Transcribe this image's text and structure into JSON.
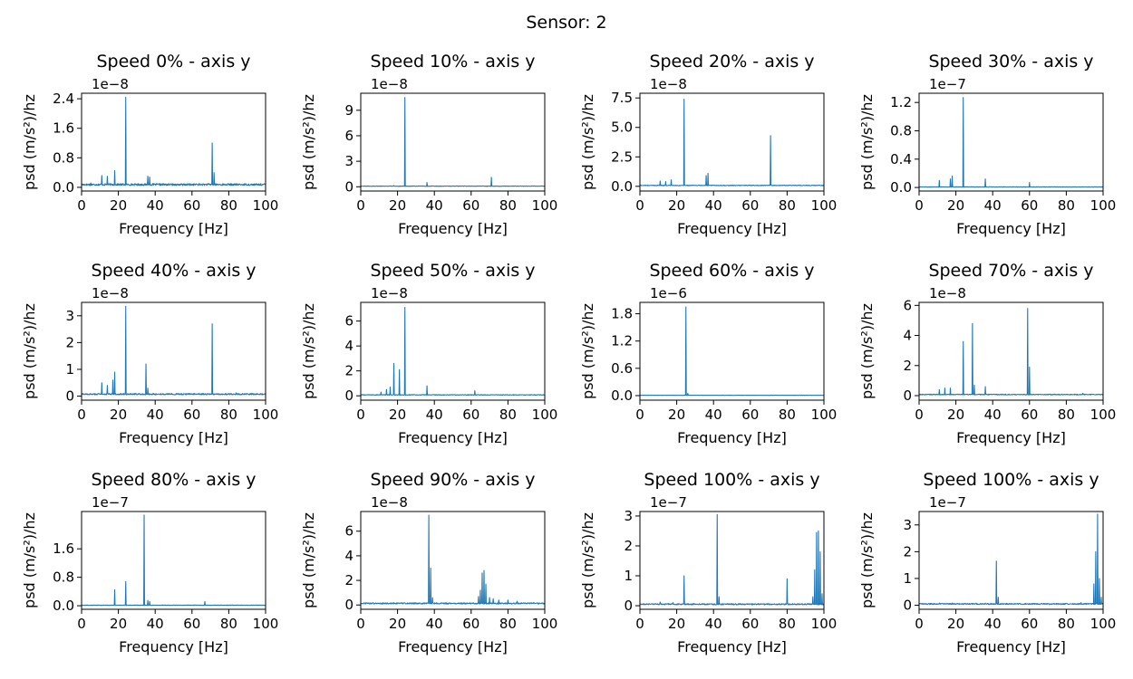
{
  "figure": {
    "suptitle": "Sensor: 2"
  },
  "chart_data": [
    {
      "type": "line",
      "title": "Speed 0% - axis y",
      "xlabel": "Frequency [Hz]",
      "ylabel": "psd (m/s²)/hz",
      "offset_text": "1e−8",
      "xlim": [
        0,
        100
      ],
      "ylim": [
        -0.1,
        2.55
      ],
      "yticks": [
        0.0,
        0.8,
        1.6,
        2.4
      ],
      "ytick_labels": [
        "0.0",
        "0.8",
        "1.6",
        "2.4"
      ],
      "xticks": [
        0,
        20,
        40,
        60,
        80,
        100
      ],
      "baseline": 0.05,
      "noise": 0.05,
      "peaks": [
        [
          2,
          0.08
        ],
        [
          5,
          0.12
        ],
        [
          11,
          0.32
        ],
        [
          14,
          0.3
        ],
        [
          18,
          0.45
        ],
        [
          24,
          2.44
        ],
        [
          36,
          0.3
        ],
        [
          37,
          0.28
        ],
        [
          55,
          0.05
        ],
        [
          71,
          1.2
        ],
        [
          72,
          0.4
        ],
        [
          90,
          0.06
        ]
      ]
    },
    {
      "type": "line",
      "title": "Speed 10% - axis y",
      "xlabel": "Frequency [Hz]",
      "ylabel": "psd (m/s²)/hz",
      "offset_text": "1e−8",
      "xlim": [
        0,
        100
      ],
      "ylim": [
        -0.5,
        11
      ],
      "yticks": [
        0,
        3,
        6,
        9
      ],
      "ytick_labels": [
        "0",
        "3",
        "6",
        "9"
      ],
      "xticks": [
        0,
        20,
        40,
        60,
        80,
        100
      ],
      "baseline": 0.05,
      "noise": 0.05,
      "peaks": [
        [
          11,
          0.1
        ],
        [
          18,
          0.15
        ],
        [
          24,
          10.5
        ],
        [
          36,
          0.5
        ],
        [
          71,
          1.1
        ]
      ]
    },
    {
      "type": "line",
      "title": "Speed 20% - axis y",
      "xlabel": "Frequency [Hz]",
      "ylabel": "psd (m/s²)/hz",
      "offset_text": "1e−8",
      "xlim": [
        0,
        100
      ],
      "ylim": [
        -0.4,
        7.9
      ],
      "yticks": [
        0.0,
        2.5,
        5.0,
        7.5
      ],
      "ytick_labels": [
        "0.0",
        "2.5",
        "5.0",
        "7.5"
      ],
      "xticks": [
        0,
        20,
        40,
        60,
        80,
        100
      ],
      "baseline": 0.05,
      "noise": 0.05,
      "peaks": [
        [
          11,
          0.45
        ],
        [
          14,
          0.4
        ],
        [
          17,
          0.55
        ],
        [
          24,
          7.4
        ],
        [
          36,
          0.9
        ],
        [
          37,
          1.1
        ],
        [
          60,
          0.1
        ],
        [
          71,
          4.3
        ]
      ]
    },
    {
      "type": "line",
      "title": "Speed 30% - axis y",
      "xlabel": "Frequency [Hz]",
      "ylabel": "psd (m/s²)/hz",
      "offset_text": "1e−7",
      "xlim": [
        0,
        100
      ],
      "ylim": [
        -0.05,
        1.33
      ],
      "yticks": [
        0.0,
        0.4,
        0.8,
        1.2
      ],
      "ytick_labels": [
        "0.0",
        "0.4",
        "0.8",
        "1.2"
      ],
      "xticks": [
        0,
        20,
        40,
        60,
        80,
        100
      ],
      "baseline": 0.005,
      "noise": 0.005,
      "peaks": [
        [
          11,
          0.1
        ],
        [
          17,
          0.12
        ],
        [
          18,
          0.16
        ],
        [
          24,
          1.27
        ],
        [
          36,
          0.12
        ],
        [
          60,
          0.07
        ]
      ]
    },
    {
      "type": "line",
      "title": "Speed 40% - axis y",
      "xlabel": "Frequency [Hz]",
      "ylabel": "psd (m/s²)/hz",
      "offset_text": "1e−8",
      "xlim": [
        0,
        100
      ],
      "ylim": [
        -0.15,
        3.5
      ],
      "yticks": [
        0,
        1,
        2,
        3
      ],
      "ytick_labels": [
        "0",
        "1",
        "2",
        "3"
      ],
      "xticks": [
        0,
        20,
        40,
        60,
        80,
        100
      ],
      "baseline": 0.05,
      "noise": 0.05,
      "peaks": [
        [
          11,
          0.5
        ],
        [
          14,
          0.4
        ],
        [
          17,
          0.6
        ],
        [
          18,
          0.9
        ],
        [
          24,
          3.35
        ],
        [
          35,
          1.2
        ],
        [
          36,
          0.3
        ],
        [
          71,
          2.7
        ],
        [
          84,
          0.12
        ]
      ]
    },
    {
      "type": "line",
      "title": "Speed 50% - axis y",
      "xlabel": "Frequency [Hz]",
      "ylabel": "psd (m/s²)/hz",
      "offset_text": "1e−8",
      "xlim": [
        0,
        100
      ],
      "ylim": [
        -0.35,
        7.5
      ],
      "yticks": [
        0,
        2,
        4,
        6
      ],
      "ytick_labels": [
        "0",
        "2",
        "4",
        "6"
      ],
      "xticks": [
        0,
        20,
        40,
        60,
        80,
        100
      ],
      "baseline": 0.05,
      "noise": 0.05,
      "peaks": [
        [
          11,
          0.3
        ],
        [
          14,
          0.5
        ],
        [
          16,
          0.7
        ],
        [
          18,
          2.6
        ],
        [
          21,
          2.1
        ],
        [
          24,
          7.1
        ],
        [
          36,
          0.8
        ],
        [
          62,
          0.4
        ]
      ]
    },
    {
      "type": "line",
      "title": "Speed 60% - axis y",
      "xlabel": "Frequency [Hz]",
      "ylabel": "psd (m/s²)/hz",
      "offset_text": "1e−6",
      "xlim": [
        0,
        100
      ],
      "ylim": [
        -0.1,
        2.05
      ],
      "yticks": [
        0.0,
        0.6,
        1.2,
        1.8
      ],
      "ytick_labels": [
        "0.0",
        "0.6",
        "1.2",
        "1.8"
      ],
      "xticks": [
        0,
        20,
        40,
        60,
        80,
        100
      ],
      "baseline": 0.005,
      "noise": 0.005,
      "peaks": [
        [
          25,
          1.95
        ],
        [
          26,
          0.05
        ]
      ]
    },
    {
      "type": "line",
      "title": "Speed 70% - axis y",
      "xlabel": "Frequency [Hz]",
      "ylabel": "psd (m/s²)/hz",
      "offset_text": "1e−8",
      "xlim": [
        0,
        100
      ],
      "ylim": [
        -0.3,
        6.2
      ],
      "yticks": [
        0,
        2,
        4,
        6
      ],
      "ytick_labels": [
        "0",
        "2",
        "4",
        "6"
      ],
      "xticks": [
        0,
        20,
        40,
        60,
        80,
        100
      ],
      "baseline": 0.05,
      "noise": 0.05,
      "peaks": [
        [
          11,
          0.4
        ],
        [
          14,
          0.5
        ],
        [
          17,
          0.5
        ],
        [
          24,
          3.6
        ],
        [
          29,
          4.8
        ],
        [
          30,
          0.7
        ],
        [
          36,
          0.6
        ],
        [
          59,
          5.8
        ],
        [
          60,
          1.9
        ],
        [
          89,
          0.15
        ]
      ]
    },
    {
      "type": "line",
      "title": "Speed 80% - axis y",
      "xlabel": "Frequency [Hz]",
      "ylabel": "psd (m/s²)/hz",
      "offset_text": "1e−7",
      "xlim": [
        0,
        100
      ],
      "ylim": [
        -0.1,
        2.65
      ],
      "yticks": [
        0.0,
        0.8,
        1.6
      ],
      "ytick_labels": [
        "0.0",
        "0.8",
        "1.6"
      ],
      "xticks": [
        0,
        20,
        40,
        60,
        80,
        100
      ],
      "baseline": 0.01,
      "noise": 0.01,
      "peaks": [
        [
          18,
          0.45
        ],
        [
          24,
          0.68
        ],
        [
          34,
          2.55
        ],
        [
          36,
          0.15
        ],
        [
          37,
          0.12
        ],
        [
          67,
          0.12
        ]
      ]
    },
    {
      "type": "line",
      "title": "Speed 90% - axis y",
      "xlabel": "Frequency [Hz]",
      "ylabel": "psd (m/s²)/hz",
      "offset_text": "1e−8",
      "xlim": [
        0,
        100
      ],
      "ylim": [
        -0.35,
        7.6
      ],
      "yticks": [
        0,
        2,
        4,
        6
      ],
      "ytick_labels": [
        "0",
        "2",
        "4",
        "6"
      ],
      "xticks": [
        0,
        20,
        40,
        60,
        80,
        100
      ],
      "baseline": 0.08,
      "noise": 0.1,
      "peaks": [
        [
          18,
          0.2
        ],
        [
          37,
          7.3
        ],
        [
          38,
          3.0
        ],
        [
          39,
          0.6
        ],
        [
          64,
          0.7
        ],
        [
          65,
          1.2
        ],
        [
          66,
          2.6
        ],
        [
          67,
          2.8
        ],
        [
          68,
          1.7
        ],
        [
          70,
          0.6
        ],
        [
          72,
          0.5
        ],
        [
          75,
          0.4
        ],
        [
          80,
          0.4
        ],
        [
          85,
          0.3
        ],
        [
          94,
          0.2
        ]
      ]
    },
    {
      "type": "line",
      "title": "Speed 100% - axis y",
      "xlabel": "Frequency [Hz]",
      "ylabel": "psd (m/s²)/hz",
      "offset_text": "1e−7",
      "xlim": [
        0,
        100
      ],
      "ylim": [
        -0.12,
        3.15
      ],
      "yticks": [
        0,
        1,
        2,
        3
      ],
      "ytick_labels": [
        "0",
        "1",
        "2",
        "3"
      ],
      "xticks": [
        0,
        20,
        40,
        60,
        80,
        100
      ],
      "baseline": 0.03,
      "noise": 0.04,
      "peaks": [
        [
          11,
          0.12
        ],
        [
          18,
          0.1
        ],
        [
          24,
          1.0
        ],
        [
          42,
          3.05
        ],
        [
          43,
          0.3
        ],
        [
          80,
          0.9
        ],
        [
          94,
          0.3
        ],
        [
          95,
          1.2
        ],
        [
          96,
          2.45
        ],
        [
          97,
          2.5
        ],
        [
          98,
          1.8
        ],
        [
          99,
          0.4
        ]
      ]
    },
    {
      "type": "line",
      "title": "Speed 100% - axis y",
      "xlabel": "Frequency [Hz]",
      "ylabel": "psd (m/s²)/hz",
      "offset_text": "1e−7",
      "xlim": [
        0,
        100
      ],
      "ylim": [
        -0.15,
        3.5
      ],
      "yticks": [
        0,
        1,
        2,
        3
      ],
      "ytick_labels": [
        "0",
        "1",
        "2",
        "3"
      ],
      "xticks": [
        0,
        20,
        40,
        60,
        80,
        100
      ],
      "baseline": 0.03,
      "noise": 0.04,
      "peaks": [
        [
          11,
          0.08
        ],
        [
          18,
          0.08
        ],
        [
          36,
          0.08
        ],
        [
          42,
          1.65
        ],
        [
          43,
          0.3
        ],
        [
          88,
          0.1
        ],
        [
          95,
          0.8
        ],
        [
          96,
          2.0
        ],
        [
          97,
          3.4
        ],
        [
          98,
          1.0
        ],
        [
          99,
          0.3
        ]
      ]
    }
  ]
}
